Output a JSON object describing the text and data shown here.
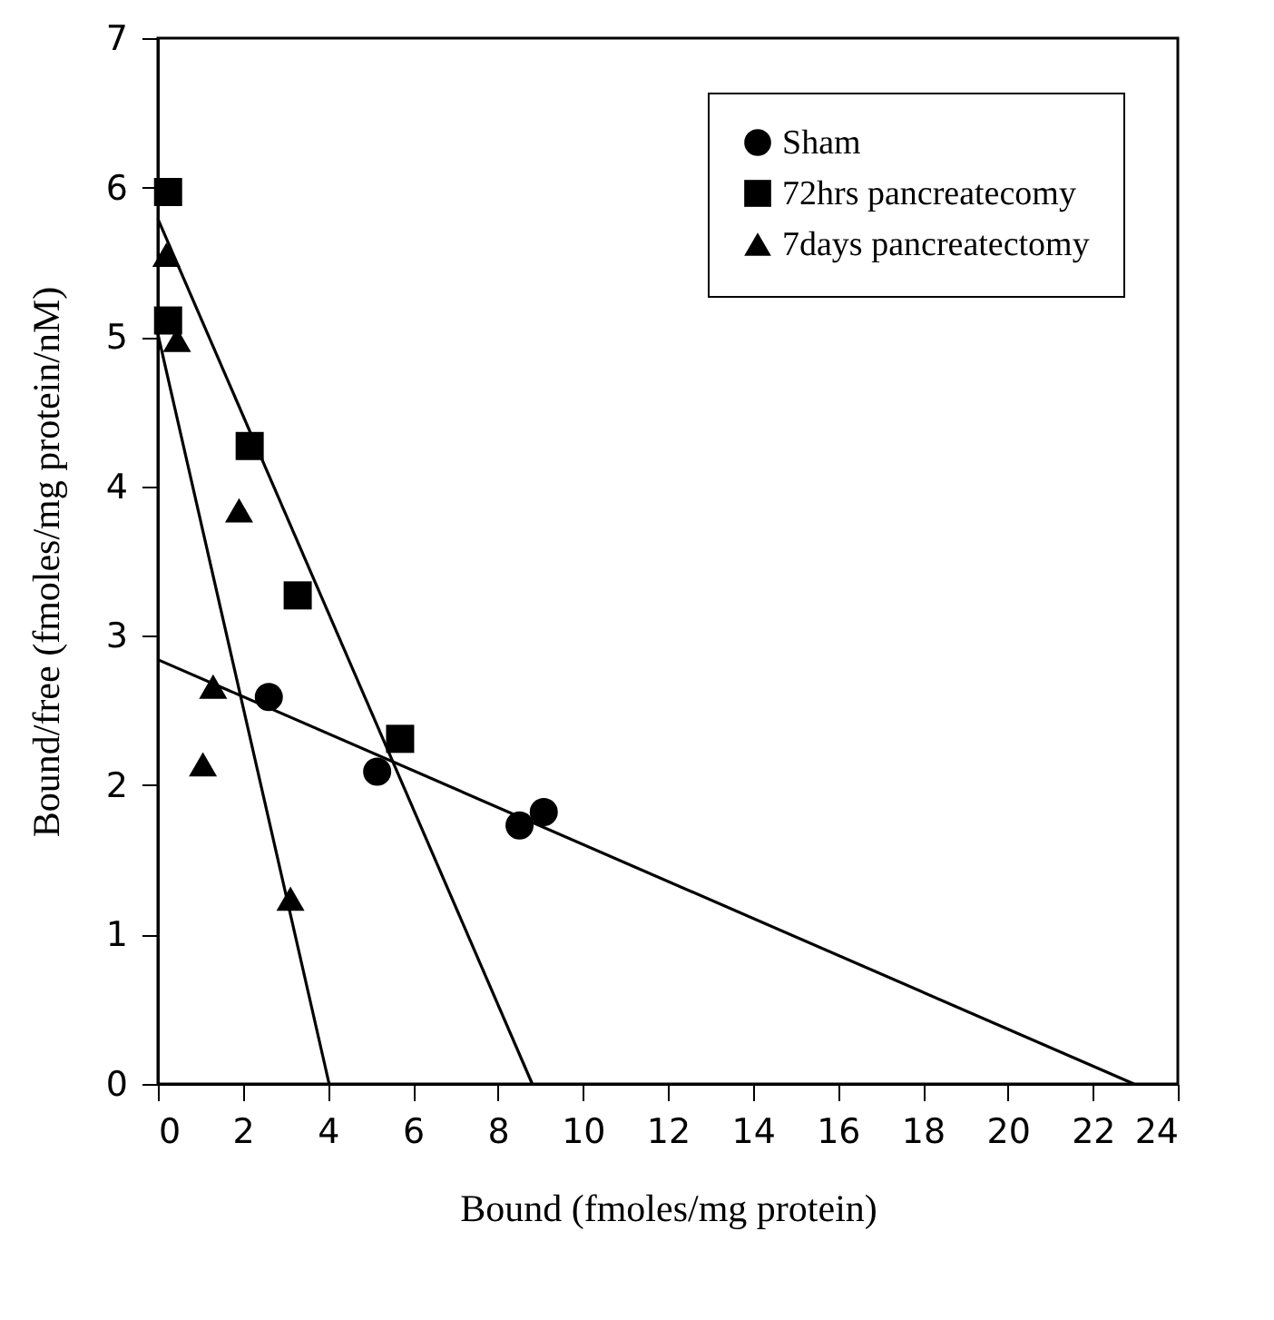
{
  "chart_data": {
    "type": "scatter",
    "xlabel": "Bound (fmoles/mg protein)",
    "ylabel": "Bound/free (fmoles/mg protein/nM)",
    "xlim": [
      0,
      24
    ],
    "xticks": [
      0,
      2,
      4,
      6,
      8,
      10,
      12,
      14,
      16,
      18,
      20,
      22,
      24
    ],
    "ylim": [
      0,
      7
    ],
    "yticks": [
      0,
      1,
      2,
      3,
      4,
      5,
      6,
      7
    ],
    "legend": "top right",
    "grid": false,
    "series": [
      {
        "name": "Sham",
        "marker": "circle",
        "color": "#000000",
        "x": [
          2.61,
          5.16,
          8.51,
          9.08
        ],
        "values": [
          2.59,
          2.09,
          1.73,
          1.82
        ]
      },
      {
        "name": "72hrs pancreatecomy",
        "marker": "square",
        "color": "#000000",
        "x": [
          0.24,
          0.24,
          2.16,
          3.29,
          5.7
        ],
        "values": [
          5.97,
          5.11,
          4.27,
          3.27,
          2.31
        ]
      },
      {
        "name": "7days pancreatectomy",
        "marker": "triangle",
        "color": "#000000",
        "x": [
          0.2,
          0.45,
          1.91,
          1.3,
          1.06,
          3.12
        ],
        "values": [
          5.55,
          4.98,
          3.84,
          2.66,
          2.14,
          1.24
        ]
      },
      {
        "type": "line",
        "color": "#000000",
        "x": [
          0,
          22.97
        ],
        "values": [
          2.84,
          0
        ]
      },
      {
        "type": "line",
        "color": "#000000",
        "x": [
          0,
          8.81
        ],
        "values": [
          5.79,
          0
        ]
      },
      {
        "type": "line",
        "color": "#000000",
        "x": [
          0,
          4.03
        ],
        "values": [
          5.02,
          0
        ]
      }
    ]
  }
}
